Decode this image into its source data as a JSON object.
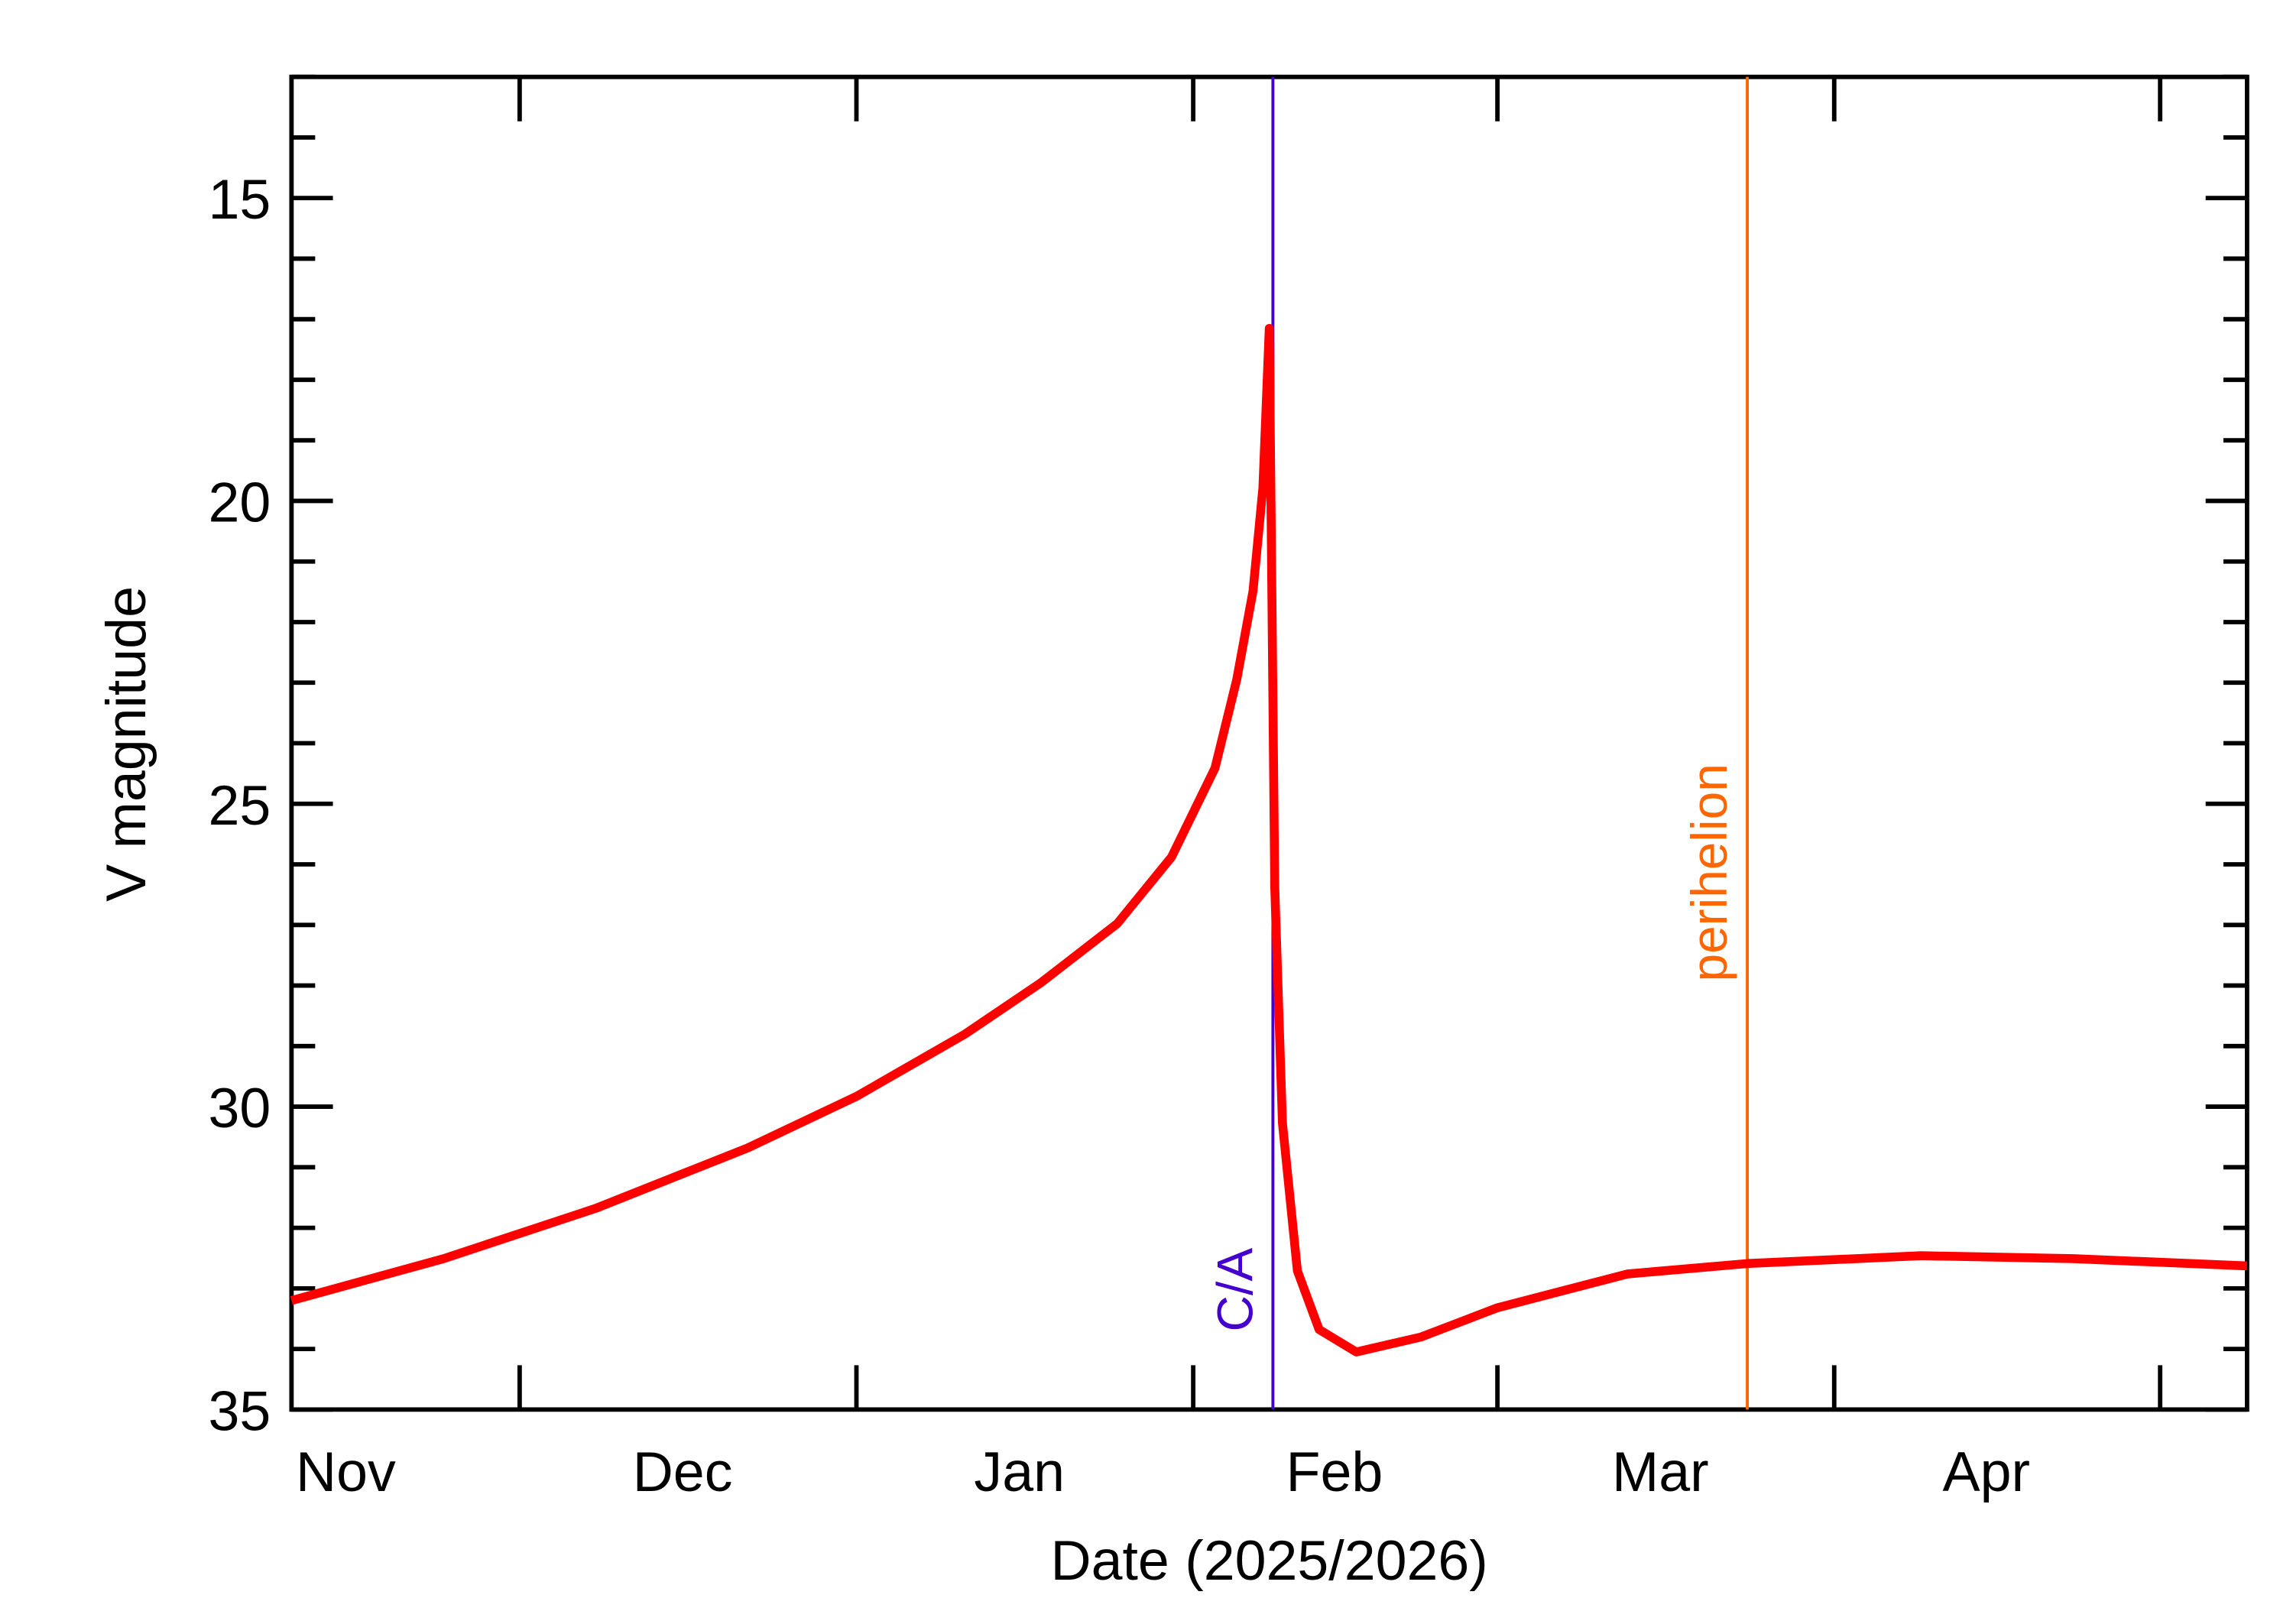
{
  "chart_data": {
    "type": "line",
    "xlabel": "Date (2025/2026)",
    "ylabel": "V magnitude",
    "xlim": [
      "2025-11-10",
      "2026-05-09"
    ],
    "ylim": [
      35,
      13
    ],
    "y_reversed": true,
    "y_ticks": [
      15,
      20,
      25,
      30,
      35
    ],
    "y_minor_step": 1,
    "x_month_ticks": [
      "2025-12-01",
      "2026-01-01",
      "2026-02-01",
      "2026-03-01",
      "2026-04-01",
      "2026-05-01"
    ],
    "x_tick_labels": [
      {
        "label": "Nov",
        "date": "2025-11-15"
      },
      {
        "label": "Dec",
        "date": "2025-12-16"
      },
      {
        "label": "Jan",
        "date": "2026-01-16"
      },
      {
        "label": "Feb",
        "date": "2026-02-14"
      },
      {
        "label": "Mar",
        "date": "2026-03-16"
      },
      {
        "label": "Apr",
        "date": "2026-04-15"
      }
    ],
    "grid": false,
    "series": [
      {
        "color": "#ff0000",
        "points": [
          [
            "2025-11-10T00:00",
            33.2
          ],
          [
            "2025-11-24T00:00",
            32.51
          ],
          [
            "2025-12-08T00:00",
            31.68
          ],
          [
            "2025-12-22T00:00",
            30.68
          ],
          [
            "2026-01-01T00:00",
            29.83
          ],
          [
            "2026-01-11T00:00",
            28.8
          ],
          [
            "2026-01-18T00:00",
            27.95
          ],
          [
            "2026-01-25T00:00",
            26.98
          ],
          [
            "2026-01-30T00:00",
            25.88
          ],
          [
            "2026-02-03T00:00",
            24.41
          ],
          [
            "2026-02-05T00:00",
            22.95
          ],
          [
            "2026-02-06T12:00",
            21.49
          ],
          [
            "2026-02-07T10:00",
            19.78
          ],
          [
            "2026-02-08T00:00",
            17.15
          ],
          [
            "2026-02-08T12:00",
            26.37
          ],
          [
            "2026-02-09T05:00",
            30.27
          ],
          [
            "2026-02-10T14:00",
            32.71
          ],
          [
            "2026-02-12T14:00",
            33.68
          ],
          [
            "2026-02-16T00:00",
            34.05
          ],
          [
            "2026-02-22T00:00",
            33.8
          ],
          [
            "2026-03-01T00:00",
            33.32
          ],
          [
            "2026-03-13T00:00",
            32.76
          ],
          [
            "2026-03-24T00:00",
            32.59
          ],
          [
            "2026-04-09T00:00",
            32.46
          ],
          [
            "2026-04-23T00:00",
            32.51
          ],
          [
            "2026-05-09T00:00",
            32.63
          ]
        ]
      }
    ],
    "markers": [
      {
        "label": "C/A",
        "date": "2026-02-08T08:00",
        "color": "#4400cc"
      },
      {
        "label": "perihelion",
        "date": "2026-03-24T00:00",
        "color": "#ff6600"
      }
    ]
  }
}
